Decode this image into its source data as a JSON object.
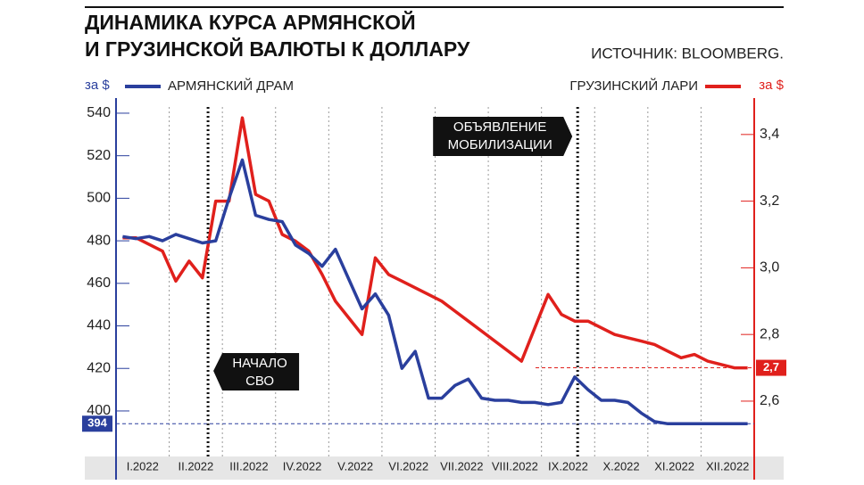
{
  "header": {
    "title_lines": [
      "ДИНАМИКА КУРСА АРМЯНСКОЙ",
      "И ГРУЗИНСКОЙ ВАЛЮТЫ К ДОЛЛАРУ"
    ],
    "source": "ИСТОЧНИК: BLOOMBERG."
  },
  "chart_data": {
    "type": "line",
    "y_label": "за $",
    "y2_label": "за $",
    "categories": [
      "I.2022",
      "II.2022",
      "III.2022",
      "IV.2022",
      "V.2022",
      "VI.2022",
      "VII.2022",
      "VIII.2022",
      "IX.2022",
      "X.2022",
      "XI.2022",
      "XII.2022"
    ],
    "ylim": [
      378.6,
      551.3
    ],
    "yticks": [
      400,
      420,
      440,
      460,
      480,
      500,
      520,
      540
    ],
    "y2lim": [
      2.434,
      3.536
    ],
    "y2ticks": [
      {
        "value": 2.6,
        "label": "2,6"
      },
      {
        "value": 2.8,
        "label": "2,8"
      },
      {
        "value": 3.0,
        "label": "3,0"
      },
      {
        "value": 3.2,
        "label": "3,2"
      },
      {
        "value": 3.4,
        "label": "3,4"
      }
    ],
    "series": [
      {
        "name": "АРМЯНСКИЙ ДРАМ",
        "color": "#2a3f9d",
        "axis": "y",
        "values": [
          [
            482,
            481,
            482,
            480
          ],
          [
            483,
            481,
            479,
            480
          ],
          [
            500,
            518,
            492,
            490
          ],
          [
            489,
            478,
            474,
            468
          ],
          [
            476,
            462,
            448,
            455
          ],
          [
            445,
            420,
            428,
            406
          ],
          [
            406,
            412,
            415,
            406
          ],
          [
            405,
            405,
            404,
            404
          ],
          [
            403,
            404,
            416,
            410
          ],
          [
            405,
            405,
            404,
            399
          ],
          [
            395,
            394,
            394,
            394
          ],
          [
            394,
            394,
            394,
            394
          ]
        ]
      },
      {
        "name": "ГРУЗИНСКИЙ ЛАРИ",
        "color": "#e0201c",
        "axis": "y2",
        "values": [
          [
            3.09,
            3.09,
            3.07,
            3.05
          ],
          [
            2.96,
            3.02,
            2.97,
            3.2
          ],
          [
            3.2,
            3.45,
            3.22,
            3.2
          ],
          [
            3.1,
            3.08,
            3.05,
            2.98
          ],
          [
            2.9,
            2.85,
            2.8,
            3.03
          ],
          [
            2.98,
            2.96,
            2.94,
            2.92
          ],
          [
            2.9,
            2.87,
            2.84,
            2.81
          ],
          [
            2.78,
            2.75,
            2.72,
            2.82
          ],
          [
            2.92,
            2.86,
            2.84,
            2.84
          ],
          [
            2.82,
            2.8,
            2.79,
            2.78
          ],
          [
            2.77,
            2.75,
            2.73,
            2.74
          ],
          [
            2.72,
            2.71,
            2.7,
            2.7
          ]
        ]
      }
    ],
    "ref_lines": [
      {
        "value": 394,
        "label": "394",
        "axis": "y"
      },
      {
        "value": 2.7,
        "label": "2,7",
        "axis": "y2"
      }
    ],
    "events": [
      {
        "x": 1.73,
        "label_lines": [
          "НАЧАЛО",
          "СВО"
        ]
      },
      {
        "x": 8.68,
        "label_lines": [
          "ОБЪЯВЛЕНИЕ",
          "МОБИЛИЗАЦИИ"
        ]
      }
    ]
  }
}
